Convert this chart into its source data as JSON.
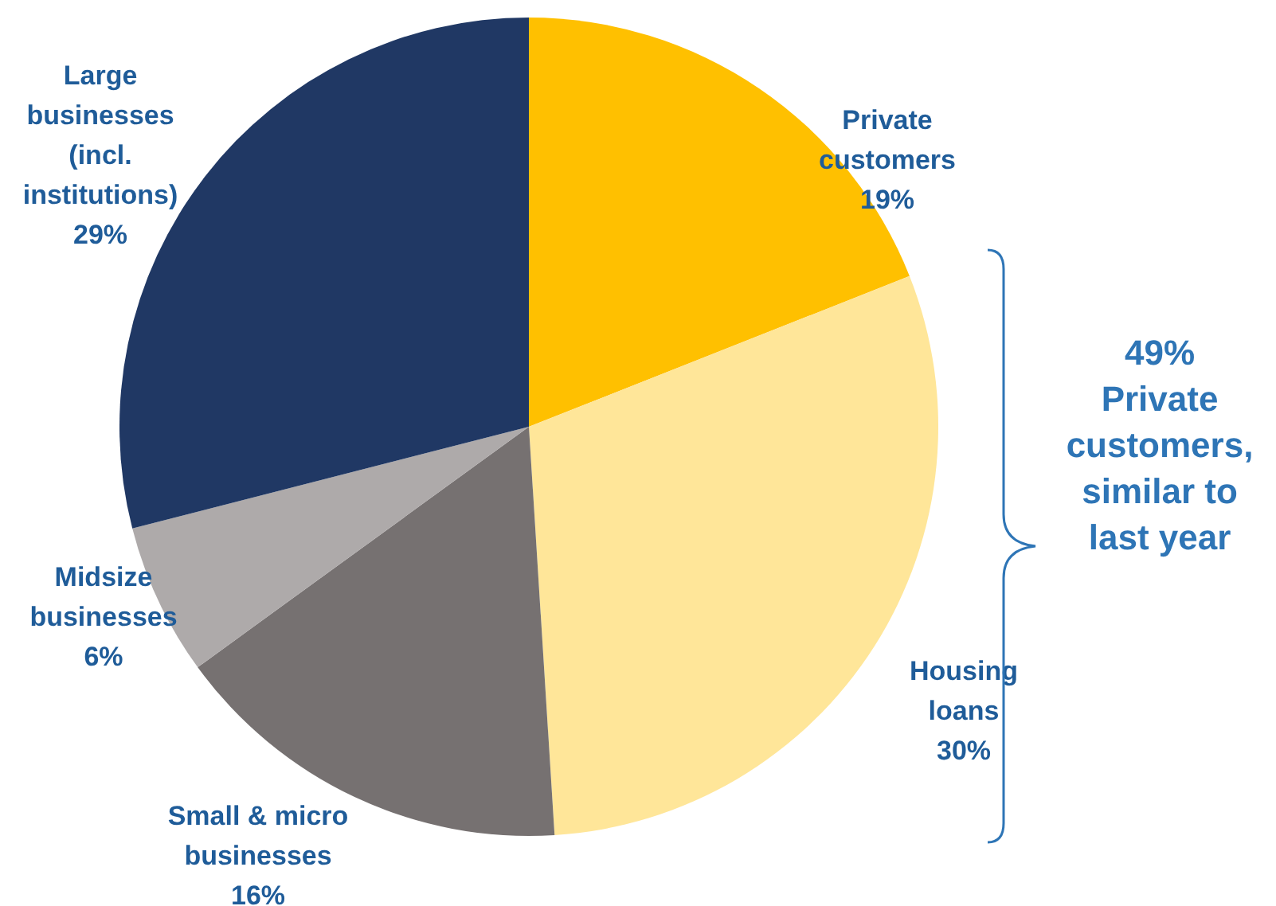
{
  "chart_data": {
    "type": "pie",
    "categories": [
      "Private\ncustomers",
      "Housing\nloans",
      "Small & micro\nbusinesses",
      "Midsize\nbusinesses",
      "Large\nbusinesses\n(incl.\ninstitutions)"
    ],
    "values": [
      19,
      30,
      16,
      6,
      29
    ],
    "value_labels": [
      "19%",
      "30%",
      "16%",
      "6%",
      "29%"
    ],
    "colors": [
      "#ffc000",
      "#ffe699",
      "#767171",
      "#aeaaaa",
      "#203864"
    ],
    "annotations": [
      "49%\nPrivate\ncustomers,\nsimilar to\nlast year"
    ]
  }
}
